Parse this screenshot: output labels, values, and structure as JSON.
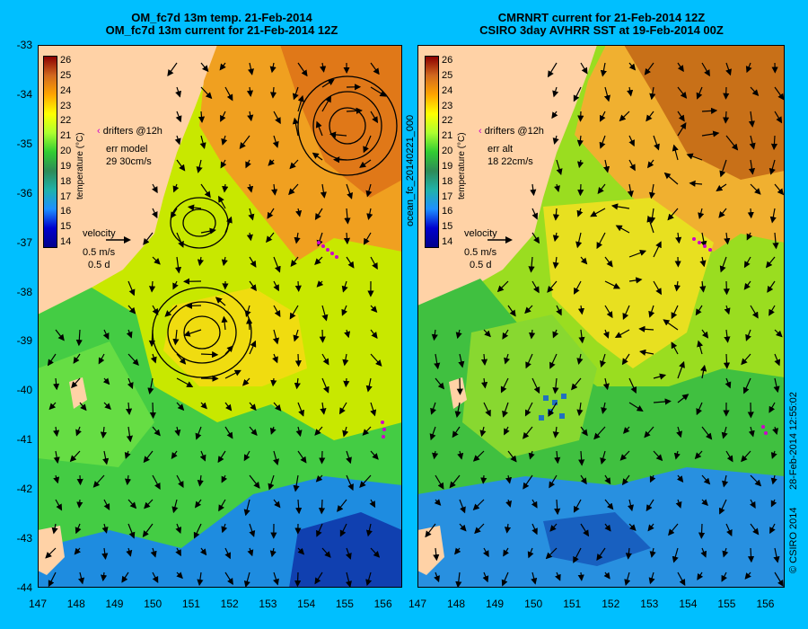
{
  "left_panel": {
    "title_line1": "OM_fc7d 13m temp. 21-Feb-2014",
    "title_line2": "OM_fc7d 13m current for 21-Feb-2014 12Z",
    "legend_drifters": "drifters @12h",
    "err_label": "err model",
    "err_values": "29 30cm/s",
    "velocity_label": "velocity",
    "velocity_scale": "0.5 m/s",
    "velocity_time": "0.5 d",
    "eddies": [
      "cyclonic-upper-right",
      "small-upper-left",
      "large-central"
    ]
  },
  "right_panel": {
    "title_line1": "CMRNRT current for 21-Feb-2014 12Z",
    "title_line2": "CSIRO 3day AVHRR SST at 19-Feb-2014 00Z",
    "legend_drifters": "drifters @12h",
    "err_label": "err alt",
    "err_values": "18 22cm/s",
    "velocity_label": "velocity",
    "velocity_scale": "0.5 m/s",
    "velocity_time": "0.5 d"
  },
  "colorbar": {
    "title": "temperature (°C)",
    "ticks": [
      "26",
      "25",
      "24",
      "23",
      "22",
      "21",
      "20",
      "19",
      "18",
      "17",
      "16",
      "15",
      "14"
    ],
    "min": 13.5,
    "max": 26.5
  },
  "axes": {
    "y_ticks": [
      "-33",
      "-34",
      "-35",
      "-36",
      "-37",
      "-38",
      "-39",
      "-40",
      "-41",
      "-42",
      "-43",
      "-44"
    ],
    "x_ticks": [
      "147",
      "148",
      "149",
      "150",
      "151",
      "152",
      "153",
      "154",
      "155",
      "156"
    ]
  },
  "side_labels": {
    "middle": "ocean_fc_20140221_000",
    "right_timestamp": "28-Feb-2014 12:55:02",
    "right_credit": "© CSIRO 2014"
  },
  "colors": {
    "background": "#00BFFF",
    "land": "#FFD2A6",
    "drifters": "#CC00CC"
  }
}
